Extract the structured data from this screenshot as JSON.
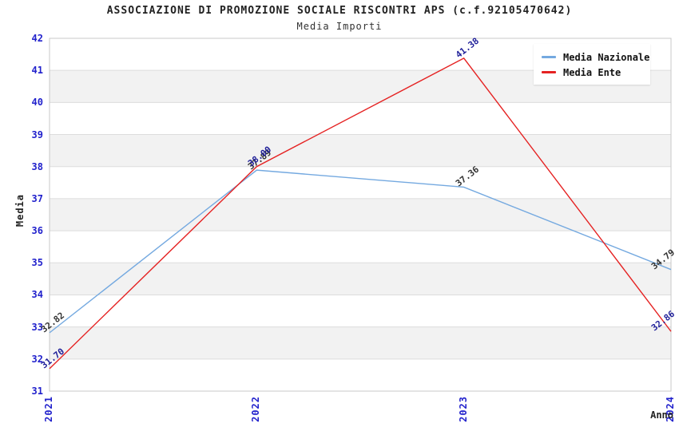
{
  "chart_data": {
    "type": "line",
    "title": "ASSOCIAZIONE DI PROMOZIONE SOCIALE RISCONTRI APS (c.f.92105470642)",
    "subtitle": "Media Importi",
    "xlabel": "Anno",
    "ylabel": "Media",
    "x_categories": [
      "2021",
      "2022",
      "2023",
      "2024"
    ],
    "yticks": [
      31,
      32,
      33,
      34,
      35,
      36,
      37,
      38,
      39,
      40,
      41,
      42
    ],
    "ylim": [
      31,
      42
    ],
    "grid": "horizontal-only",
    "legend_position": "top-right",
    "series": [
      {
        "name": "Media Nazionale",
        "color": "#74A9E0",
        "label_color": "#333333",
        "values": [
          32.82,
          37.89,
          37.36,
          34.79
        ]
      },
      {
        "name": "Media Ente",
        "color": "#E52222",
        "label_color": "#1F1F99",
        "values": [
          31.7,
          38.0,
          41.38,
          32.86
        ]
      }
    ],
    "styles": {
      "tick_color": "#2222CC",
      "band_color_a": "#FFFFFF",
      "band_color_b": "#F2F2F2",
      "grid_color": "#DCDCDC",
      "frame_color": "#C8C8C8"
    }
  }
}
